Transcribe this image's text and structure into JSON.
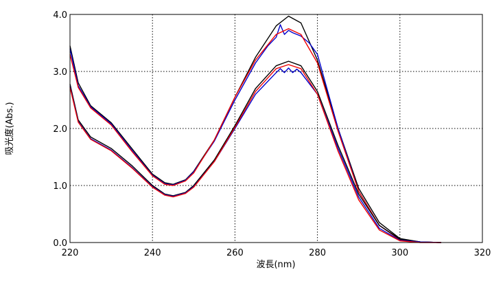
{
  "chart_data": {
    "type": "line",
    "xlabel": "波長(nm)",
    "ylabel": "吸光度(Abs.)",
    "xlim": [
      220,
      320
    ],
    "ylim": [
      0.0,
      4.0
    ],
    "x_ticks": [
      "220",
      "240",
      "260",
      "280",
      "300",
      "320"
    ],
    "y_ticks": [
      "0.0",
      "1.0",
      "2.0",
      "3.0",
      "4.0"
    ],
    "grid": true,
    "series": [
      {
        "color": "#000000",
        "x": [
          220,
          222,
          225,
          230,
          235,
          240,
          243,
          245,
          248,
          250,
          255,
          260,
          265,
          270,
          273,
          276,
          280,
          285,
          290,
          295,
          300,
          305,
          310
        ],
        "y": [
          3.45,
          2.8,
          2.4,
          2.1,
          1.65,
          1.2,
          1.05,
          1.02,
          1.1,
          1.25,
          1.8,
          2.55,
          3.25,
          3.8,
          3.97,
          3.85,
          3.2,
          2.0,
          0.95,
          0.35,
          0.07,
          0.01,
          0.0
        ]
      },
      {
        "color": "#0000cc",
        "x": [
          220,
          222,
          225,
          230,
          235,
          240,
          243,
          245,
          248,
          250,
          255,
          260,
          265,
          268,
          270,
          271,
          272,
          273,
          274,
          276,
          278,
          279,
          280,
          285,
          290,
          295,
          300,
          305,
          310
        ],
        "y": [
          3.4,
          2.75,
          2.38,
          2.08,
          1.62,
          1.18,
          1.03,
          1.01,
          1.09,
          1.24,
          1.78,
          2.5,
          3.15,
          3.45,
          3.6,
          3.82,
          3.65,
          3.72,
          3.68,
          3.62,
          3.5,
          3.4,
          3.3,
          2.0,
          0.9,
          0.3,
          0.05,
          0.01,
          0.0
        ]
      },
      {
        "color": "#ee0000",
        "x": [
          220,
          222,
          225,
          230,
          235,
          240,
          243,
          245,
          248,
          250,
          255,
          260,
          265,
          270,
          273,
          276,
          280,
          285,
          290,
          295,
          300,
          305,
          310
        ],
        "y": [
          3.3,
          2.72,
          2.36,
          2.06,
          1.6,
          1.17,
          1.02,
          1.0,
          1.08,
          1.22,
          1.8,
          2.55,
          3.2,
          3.65,
          3.75,
          3.65,
          3.15,
          1.95,
          0.9,
          0.3,
          0.05,
          0.01,
          0.0
        ]
      },
      {
        "color": "#000000",
        "x": [
          220,
          222,
          225,
          230,
          235,
          240,
          243,
          245,
          248,
          250,
          255,
          260,
          265,
          270,
          273,
          276,
          280,
          285,
          290,
          295,
          300,
          305,
          310
        ],
        "y": [
          2.78,
          2.15,
          1.85,
          1.65,
          1.35,
          1.0,
          0.85,
          0.82,
          0.88,
          1.0,
          1.45,
          2.05,
          2.7,
          3.1,
          3.18,
          3.1,
          2.65,
          1.7,
          0.85,
          0.3,
          0.06,
          0.01,
          0.0
        ]
      },
      {
        "color": "#0000cc",
        "x": [
          220,
          222,
          225,
          230,
          235,
          240,
          243,
          245,
          248,
          250,
          255,
          260,
          265,
          270,
          271,
          272,
          273,
          274,
          275,
          276,
          280,
          285,
          290,
          295,
          300,
          305,
          310
        ],
        "y": [
          2.74,
          2.12,
          1.82,
          1.62,
          1.32,
          0.98,
          0.84,
          0.81,
          0.87,
          0.98,
          1.42,
          2.0,
          2.6,
          2.98,
          3.05,
          2.98,
          3.06,
          2.98,
          3.04,
          2.98,
          2.6,
          1.65,
          0.8,
          0.25,
          0.04,
          0.01,
          0.0
        ]
      },
      {
        "color": "#ee0000",
        "x": [
          220,
          222,
          225,
          230,
          235,
          240,
          243,
          245,
          248,
          250,
          255,
          260,
          265,
          270,
          273,
          276,
          280,
          285,
          290,
          295,
          300,
          305,
          310
        ],
        "y": [
          2.72,
          2.11,
          1.81,
          1.61,
          1.31,
          0.97,
          0.83,
          0.8,
          0.86,
          0.97,
          1.42,
          2.02,
          2.65,
          3.05,
          3.12,
          3.05,
          2.6,
          1.6,
          0.75,
          0.22,
          0.03,
          0.0,
          0.0
        ]
      }
    ]
  }
}
